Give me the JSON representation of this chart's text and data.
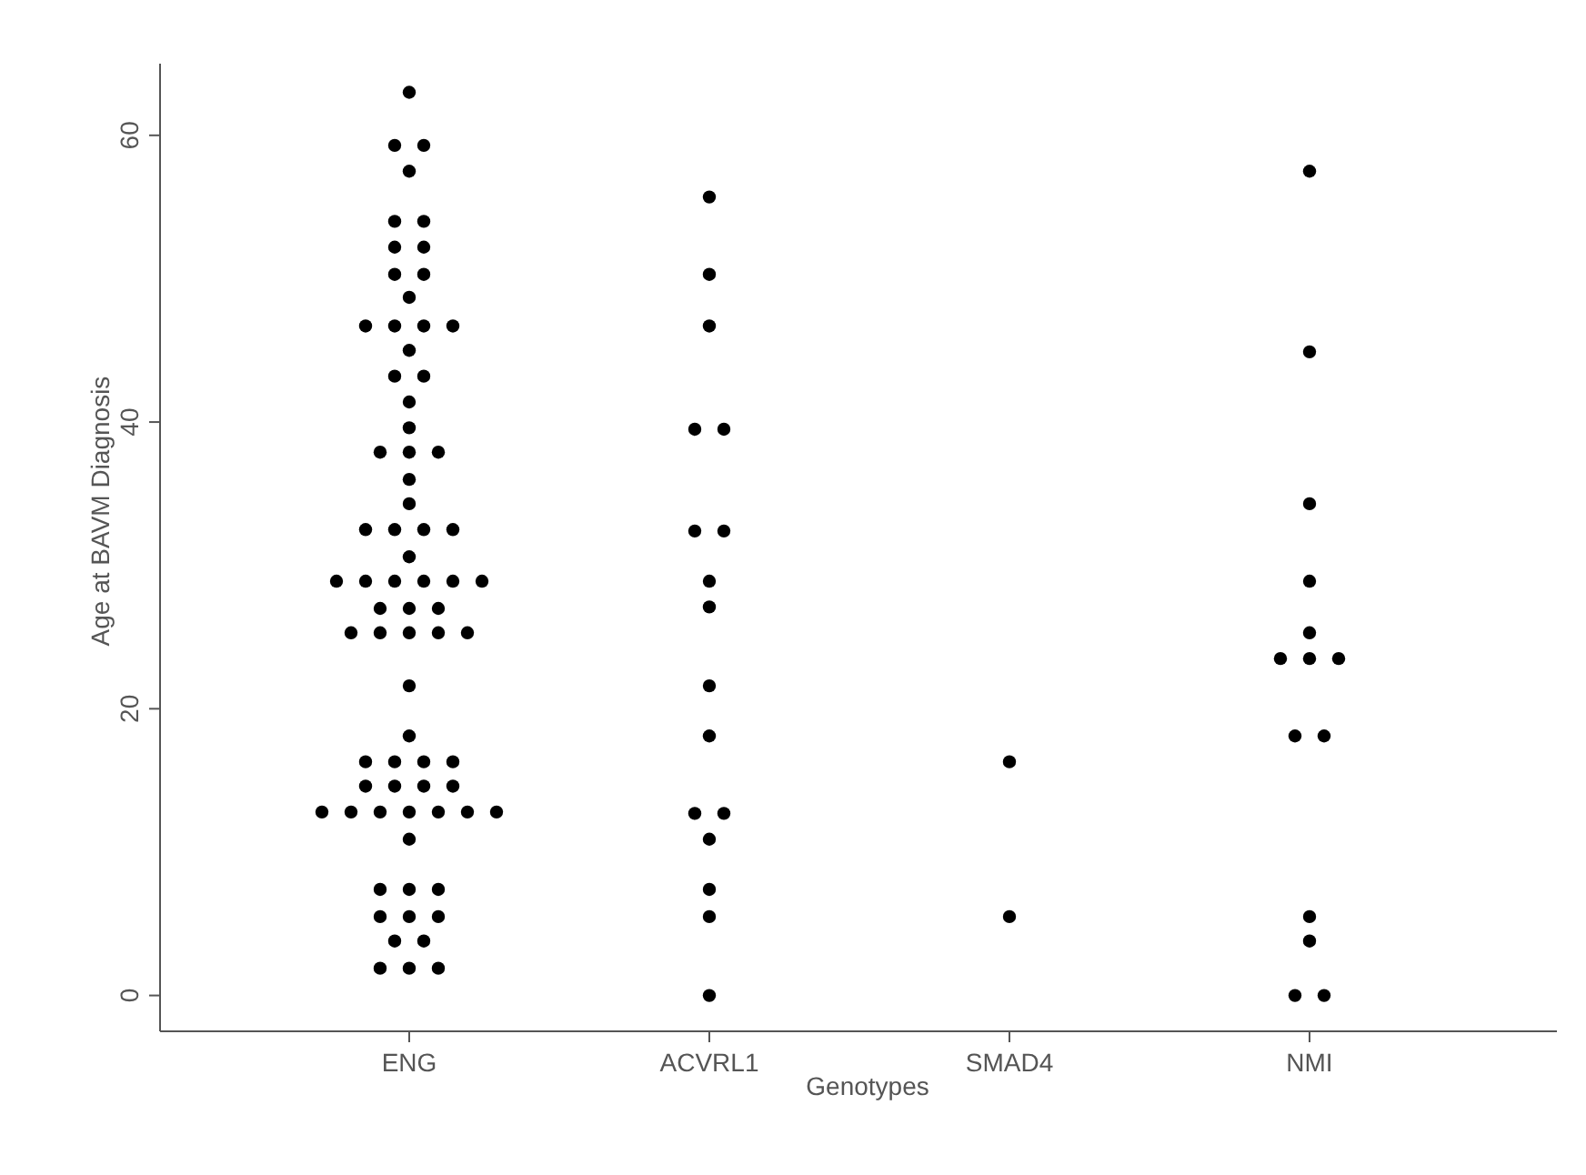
{
  "chart_data": {
    "type": "scatter",
    "xlabel": "Genotypes",
    "ylabel": "Age at BAVM Diagnosis",
    "categories": [
      "ENG",
      "ACVRL1",
      "SMAD4",
      "NMI"
    ],
    "ylim": [
      -2.5,
      65
    ],
    "yticks": [
      0,
      20,
      40,
      60
    ],
    "grid": false,
    "marker": "circle",
    "series": [
      {
        "color": "#000000",
        "x": [
          "ENG",
          "ENG",
          "ENG",
          "ENG",
          "ENG",
          "ENG",
          "ENG",
          "ENG",
          "ENG",
          "ENG",
          "ENG",
          "ENG",
          "ENG",
          "ENG",
          "ENG",
          "ENG",
          "ENG",
          "ENG",
          "ENG",
          "ENG",
          "ENG",
          "ENG",
          "ENG",
          "ENG",
          "ENG",
          "ENG",
          "ENG",
          "ENG",
          "ENG",
          "ENG",
          "ENG",
          "ENG",
          "ENG",
          "ENG",
          "ENG",
          "ENG",
          "ENG",
          "ENG",
          "ENG",
          "ENG",
          "ENG",
          "ENG",
          "ENG",
          "ENG",
          "ENG",
          "ENG",
          "ENG",
          "ENG",
          "ENG",
          "ENG",
          "ENG",
          "ENG",
          "ENG",
          "ENG",
          "ENG",
          "ENG",
          "ENG",
          "ENG",
          "ENG",
          "ENG",
          "ENG",
          "ENG",
          "ENG",
          "ENG",
          "ENG",
          "ENG",
          "ENG",
          "ENG",
          "ENG",
          "ENG",
          "ENG",
          "ENG",
          "ENG"
        ],
        "values": [
          63,
          59.3,
          59.3,
          57.5,
          54,
          54,
          52.2,
          52.2,
          50.3,
          50.3,
          48.7,
          46.7,
          46.7,
          46.7,
          46.7,
          45,
          43.2,
          43.2,
          41.4,
          39.6,
          37.9,
          37.9,
          37.9,
          36,
          34.3,
          32.5,
          32.5,
          32.5,
          32.5,
          30.6,
          28.9,
          28.9,
          28.9,
          28.9,
          28.9,
          28.9,
          27,
          27,
          27,
          25.3,
          25.3,
          25.3,
          25.3,
          25.3,
          21.6,
          18.1,
          16.3,
          16.3,
          16.3,
          16.3,
          14.6,
          14.6,
          14.6,
          14.6,
          12.8,
          12.8,
          12.8,
          12.8,
          12.8,
          12.8,
          12.8,
          10.9,
          7.4,
          7.4,
          7.4,
          5.5,
          5.5,
          5.5,
          3.8,
          3.8,
          1.9,
          1.9,
          1.9
        ]
      },
      {
        "color": "#000000",
        "x": [
          "ACVRL1",
          "ACVRL1",
          "ACVRL1",
          "ACVRL1",
          "ACVRL1",
          "ACVRL1",
          "ACVRL1",
          "ACVRL1",
          "ACVRL1",
          "ACVRL1",
          "ACVRL1",
          "ACVRL1",
          "ACVRL1",
          "ACVRL1",
          "ACVRL1",
          "ACVRL1",
          "ACVRL1"
        ],
        "values": [
          55.7,
          50.3,
          46.7,
          39.5,
          39.5,
          32.4,
          32.4,
          28.9,
          27.1,
          21.6,
          18.1,
          12.7,
          12.7,
          10.9,
          7.4,
          5.5,
          0
        ]
      },
      {
        "color": "#000000",
        "x": [
          "SMAD4",
          "SMAD4"
        ],
        "values": [
          16.3,
          5.5
        ]
      },
      {
        "color": "#000000",
        "x": [
          "NMI",
          "NMI",
          "NMI",
          "NMI",
          "NMI",
          "NMI",
          "NMI",
          "NMI",
          "NMI",
          "NMI",
          "NMI",
          "NMI",
          "NMI",
          "NMI"
        ],
        "values": [
          57.5,
          44.9,
          34.3,
          28.9,
          25.3,
          23.5,
          23.5,
          23.5,
          18.1,
          18.1,
          5.5,
          3.8,
          0,
          0
        ]
      }
    ]
  }
}
